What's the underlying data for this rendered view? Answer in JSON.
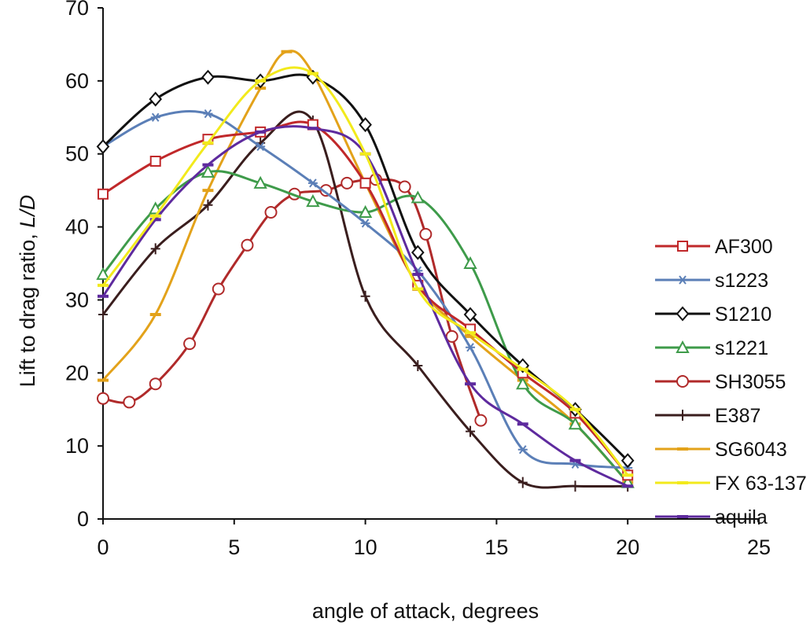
{
  "chart_data": {
    "type": "line",
    "title": "",
    "xlabel": "angle of attack, degrees",
    "ylabel_prefix": "Lift to drag ratio, ",
    "ylabel_symbol": "L/D",
    "xlim": [
      0,
      25
    ],
    "ylim": [
      0,
      70
    ],
    "x_ticks": [
      "0",
      "5",
      "10",
      "15",
      "20",
      "25"
    ],
    "y_ticks": [
      "0",
      "10",
      "20",
      "30",
      "40",
      "50",
      "60",
      "70"
    ],
    "grid": false,
    "legend_position": "right",
    "series": [
      {
        "name": "AF300",
        "color": "#c0282a",
        "marker": "square",
        "x": [
          0,
          2,
          4,
          6,
          8,
          10,
          12,
          14,
          16,
          18,
          20
        ],
        "y": [
          44.5,
          49,
          52,
          53,
          54,
          46,
          32,
          26,
          20,
          14.5,
          6
        ]
      },
      {
        "name": "s1223",
        "color": "#5b7fb7",
        "marker": "asterisk",
        "x": [
          0,
          2,
          4,
          6,
          8,
          10,
          12,
          14,
          16,
          18,
          20
        ],
        "y": [
          51,
          55,
          55.5,
          51,
          46,
          40.5,
          34,
          23.5,
          9.5,
          7.5,
          7
        ]
      },
      {
        "name": "S1210",
        "color": "#111111",
        "marker": "diamond",
        "x": [
          0,
          2,
          4,
          6,
          8,
          10,
          12,
          14,
          16,
          18,
          20
        ],
        "y": [
          51,
          57.5,
          60.5,
          60,
          60.5,
          54,
          36.5,
          28,
          21,
          15,
          8
        ]
      },
      {
        "name": "s1221",
        "color": "#3e9b4a",
        "marker": "triangle",
        "x": [
          0,
          2,
          4,
          6,
          8,
          10,
          12,
          14,
          16,
          18,
          20
        ],
        "y": [
          33.5,
          42.5,
          47.5,
          46,
          43.5,
          42,
          44,
          35,
          18.5,
          13,
          5
        ]
      },
      {
        "name": "SH3055",
        "color": "#b02a2a",
        "marker": "circle",
        "x": [
          0,
          1,
          2,
          3.3,
          4.4,
          5.5,
          6.4,
          7.3,
          8.5,
          9.3,
          10.4,
          11.5,
          12.3,
          13.3,
          14.4
        ],
        "y": [
          16.5,
          16,
          18.5,
          24,
          31.5,
          37.5,
          42,
          44.5,
          45,
          46,
          46.5,
          45.5,
          39,
          25,
          13.5
        ]
      },
      {
        "name": "E387",
        "color": "#3a1e1e",
        "marker": "plus",
        "x": [
          0,
          2,
          4,
          6,
          8,
          10,
          12,
          14,
          16,
          18,
          20
        ],
        "y": [
          28,
          37,
          43,
          51.5,
          54.5,
          30.5,
          21,
          12,
          5,
          4.5,
          4.5
        ]
      },
      {
        "name": "SG6043",
        "color": "#e3a21a",
        "marker": "dash",
        "x": [
          0,
          2,
          4,
          6,
          7,
          8,
          10,
          12,
          14,
          16,
          18,
          20
        ],
        "y": [
          19,
          28,
          45,
          59,
          64,
          61,
          46,
          32,
          25,
          19,
          13,
          5
        ]
      },
      {
        "name": "FX 63-137",
        "color": "#f2ea1c",
        "marker": "dash",
        "x": [
          0,
          2,
          4,
          6,
          8,
          10,
          12,
          14,
          16,
          18,
          20
        ],
        "y": [
          32,
          41.5,
          51.5,
          60,
          61,
          50,
          31.5,
          25.5,
          20.5,
          15,
          6
        ]
      },
      {
        "name": "aquila",
        "color": "#5e2a9e",
        "marker": "dash",
        "x": [
          0,
          2,
          4,
          6,
          8,
          10,
          12,
          14,
          16,
          18,
          20
        ],
        "y": [
          30.5,
          41,
          48.5,
          53,
          53.5,
          50,
          33.5,
          18.5,
          13,
          8,
          4.5
        ]
      }
    ]
  }
}
